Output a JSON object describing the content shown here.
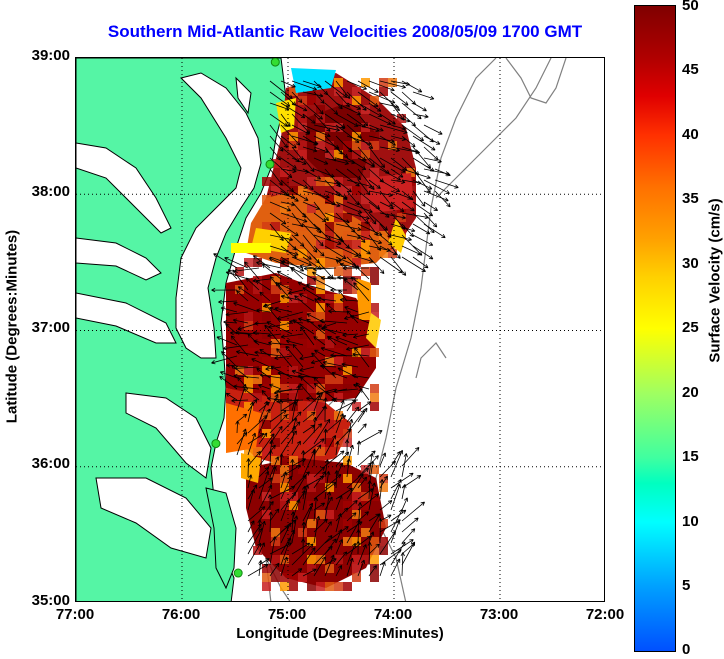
{
  "title": "Southern Mid-Atlantic Raw Velocities 2008/05/09 1700 GMT",
  "axes": {
    "xlabel": "Longitude (Degrees:Minutes)",
    "ylabel": "Latitude (Degrees:Minutes)",
    "xticks": [
      "77:00",
      "76:00",
      "75:00",
      "74:00",
      "73:00",
      "72:00"
    ],
    "yticks": [
      "39:00",
      "38:00",
      "37:00",
      "36:00",
      "35:00"
    ],
    "xlim": [
      -77,
      -72
    ],
    "ylim": [
      35,
      39
    ],
    "grid": "dotted"
  },
  "colorbar": {
    "label": "Surface Velocity (cm/s)",
    "ticks": [
      "50",
      "45",
      "40",
      "35",
      "30",
      "25",
      "20",
      "15",
      "10",
      "5",
      "0"
    ],
    "range": [
      0,
      50
    ]
  },
  "colors": {
    "land": "#55f5a5",
    "water": "#ffffff",
    "coastline": "#000000",
    "bathymetry": "#808080",
    "arrows": "#000000",
    "station": "#33dd33",
    "title": "#0000ff"
  },
  "stations": [
    {
      "lon": -75.12,
      "lat": 38.97
    },
    {
      "lon": -75.17,
      "lat": 38.22
    },
    {
      "lon": -75.68,
      "lat": 36.17
    },
    {
      "lon": -75.47,
      "lat": 35.22
    }
  ]
}
